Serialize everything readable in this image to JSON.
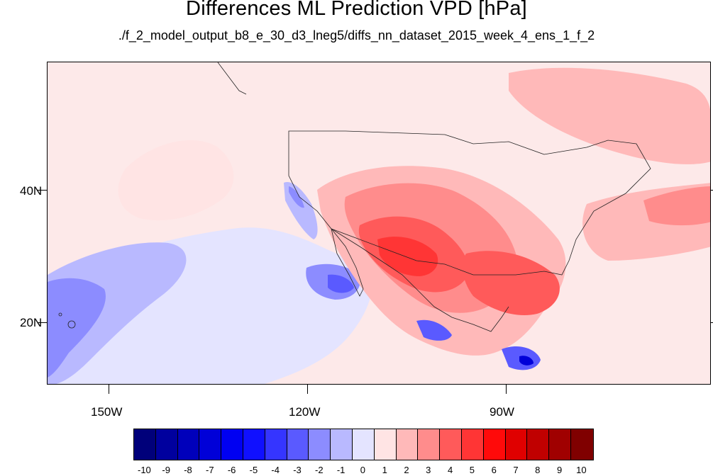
{
  "title": "Differences ML Prediction VPD [hPa]",
  "subtitle": "./f_2_model_output_b8_e_30_d3_lneg5/diffs_nn_dataset_2015_week_4_ens_1_f_2",
  "lat_labels": [
    "40N",
    "20N"
  ],
  "lon_labels": [
    "150W",
    "120W",
    "90W"
  ],
  "colorbar": {
    "labels": [
      "-10",
      "-9",
      "-8",
      "-7",
      "-6",
      "-5",
      "-4",
      "-3",
      "-2",
      "-1",
      "0",
      "1",
      "2",
      "3",
      "4",
      "5",
      "6",
      "7",
      "8",
      "9",
      "10"
    ],
    "colors": [
      "#00007a",
      "#00009e",
      "#0000bb",
      "#0000d8",
      "#0000f2",
      "#1010ff",
      "#3535ff",
      "#5a5aff",
      "#8c8cff",
      "#b9b9ff",
      "#e4e4ff",
      "#ffe4e4",
      "#ffb9b9",
      "#ff8c8c",
      "#ff5a5a",
      "#ff3535",
      "#ff0a0a",
      "#e00000",
      "#c00000",
      "#a00000",
      "#800000"
    ]
  }
}
